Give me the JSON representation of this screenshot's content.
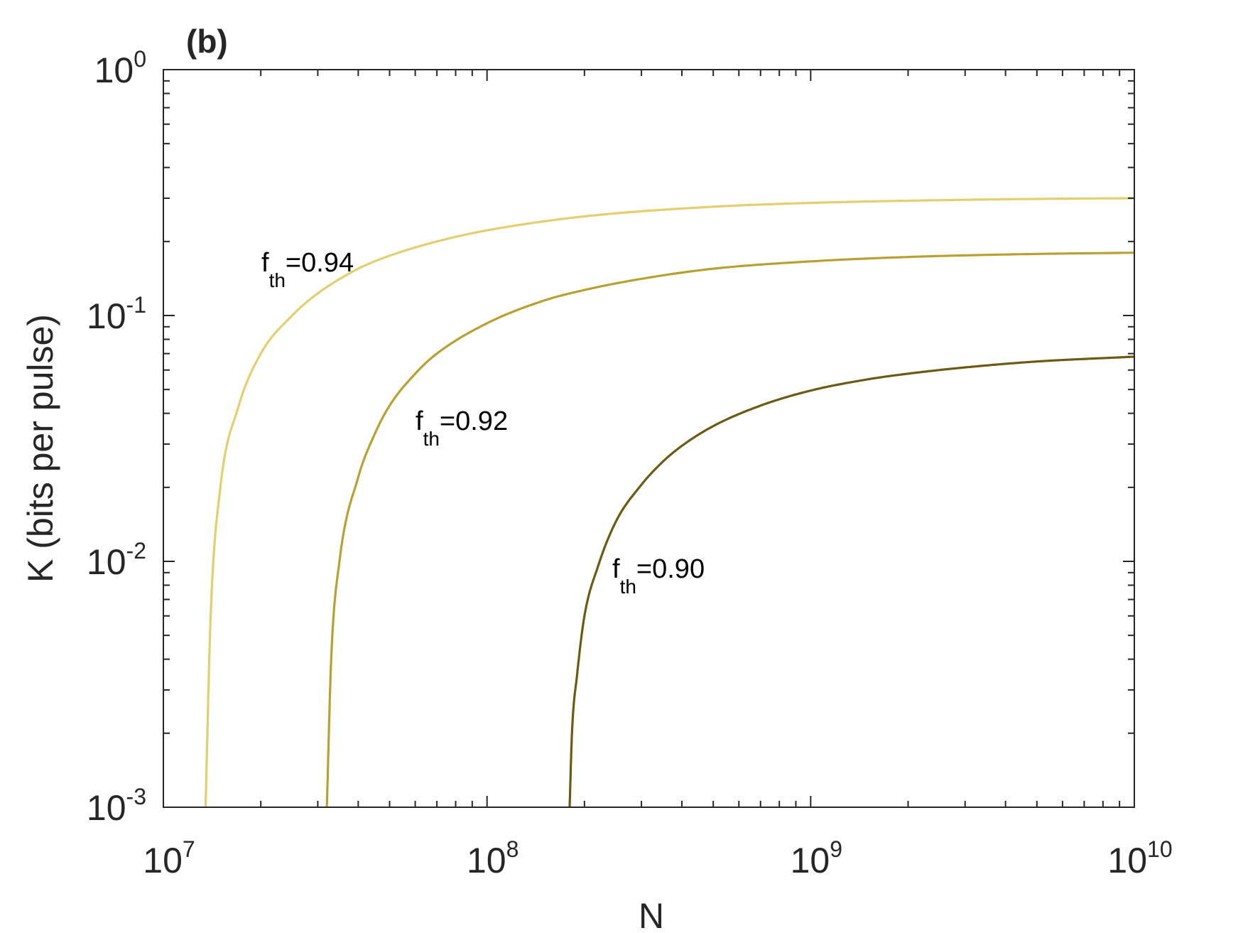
{
  "chart_data": {
    "type": "line",
    "panel_label": "(b)",
    "xlabel": "N",
    "ylabel": "K (bits per pulse)",
    "x_scale": "log",
    "y_scale": "log",
    "xlim": [
      10000000,
      10000000000
    ],
    "ylim": [
      0.001,
      1
    ],
    "x_ticks": [
      {
        "base": "10",
        "exp": "7"
      },
      {
        "base": "10",
        "exp": "8"
      },
      {
        "base": "10",
        "exp": "9"
      },
      {
        "base": "10",
        "exp": "10"
      }
    ],
    "y_ticks": [
      {
        "base": "10",
        "exp": "-3"
      },
      {
        "base": "10",
        "exp": "-2"
      },
      {
        "base": "10",
        "exp": "-1"
      },
      {
        "base": "10",
        "exp": "0"
      }
    ],
    "grid": false,
    "series": [
      {
        "color": "#e3cf6f",
        "label": {
          "main": "f",
          "sub": "th",
          "value": "=0.94"
        },
        "x": [
          13500000,
          14000000,
          15000000,
          17000000,
          20000000,
          25000000,
          30000000,
          40000000,
          50000000,
          70000000,
          100000000,
          200000000,
          500000000,
          1000000000,
          2000000000,
          5000000000,
          10000000000
        ],
        "y": [
          0.001,
          0.006,
          0.02,
          0.042,
          0.07,
          0.1,
          0.123,
          0.155,
          0.175,
          0.2,
          0.222,
          0.253,
          0.277,
          0.287,
          0.293,
          0.298,
          0.3
        ]
      },
      {
        "color": "#b9a131",
        "label": {
          "main": "f",
          "sub": "th",
          "value": "=0.92"
        },
        "x": [
          32000000,
          33000000,
          35000000,
          40000000,
          45000000,
          50000000,
          60000000,
          70000000,
          100000000,
          150000000,
          200000000,
          300000000,
          500000000,
          1000000000,
          2000000000,
          5000000000,
          10000000000
        ],
        "y": [
          0.001,
          0.004,
          0.01,
          0.022,
          0.033,
          0.043,
          0.058,
          0.07,
          0.093,
          0.115,
          0.127,
          0.141,
          0.155,
          0.166,
          0.173,
          0.178,
          0.18
        ]
      },
      {
        "color": "#6c5a12",
        "label": {
          "main": "f",
          "sub": "th",
          "value": "=0.90"
        },
        "x": [
          180000000,
          183000000,
          190000000,
          200000000,
          220000000,
          250000000,
          300000000,
          350000000,
          400000000,
          500000000,
          700000000,
          1000000000,
          1500000000,
          2000000000,
          3000000000,
          5000000000,
          10000000000
        ],
        "y": [
          0.001,
          0.002,
          0.0035,
          0.006,
          0.0095,
          0.0145,
          0.0205,
          0.0255,
          0.0295,
          0.0355,
          0.043,
          0.0495,
          0.055,
          0.058,
          0.0615,
          0.065,
          0.068
        ]
      }
    ]
  }
}
